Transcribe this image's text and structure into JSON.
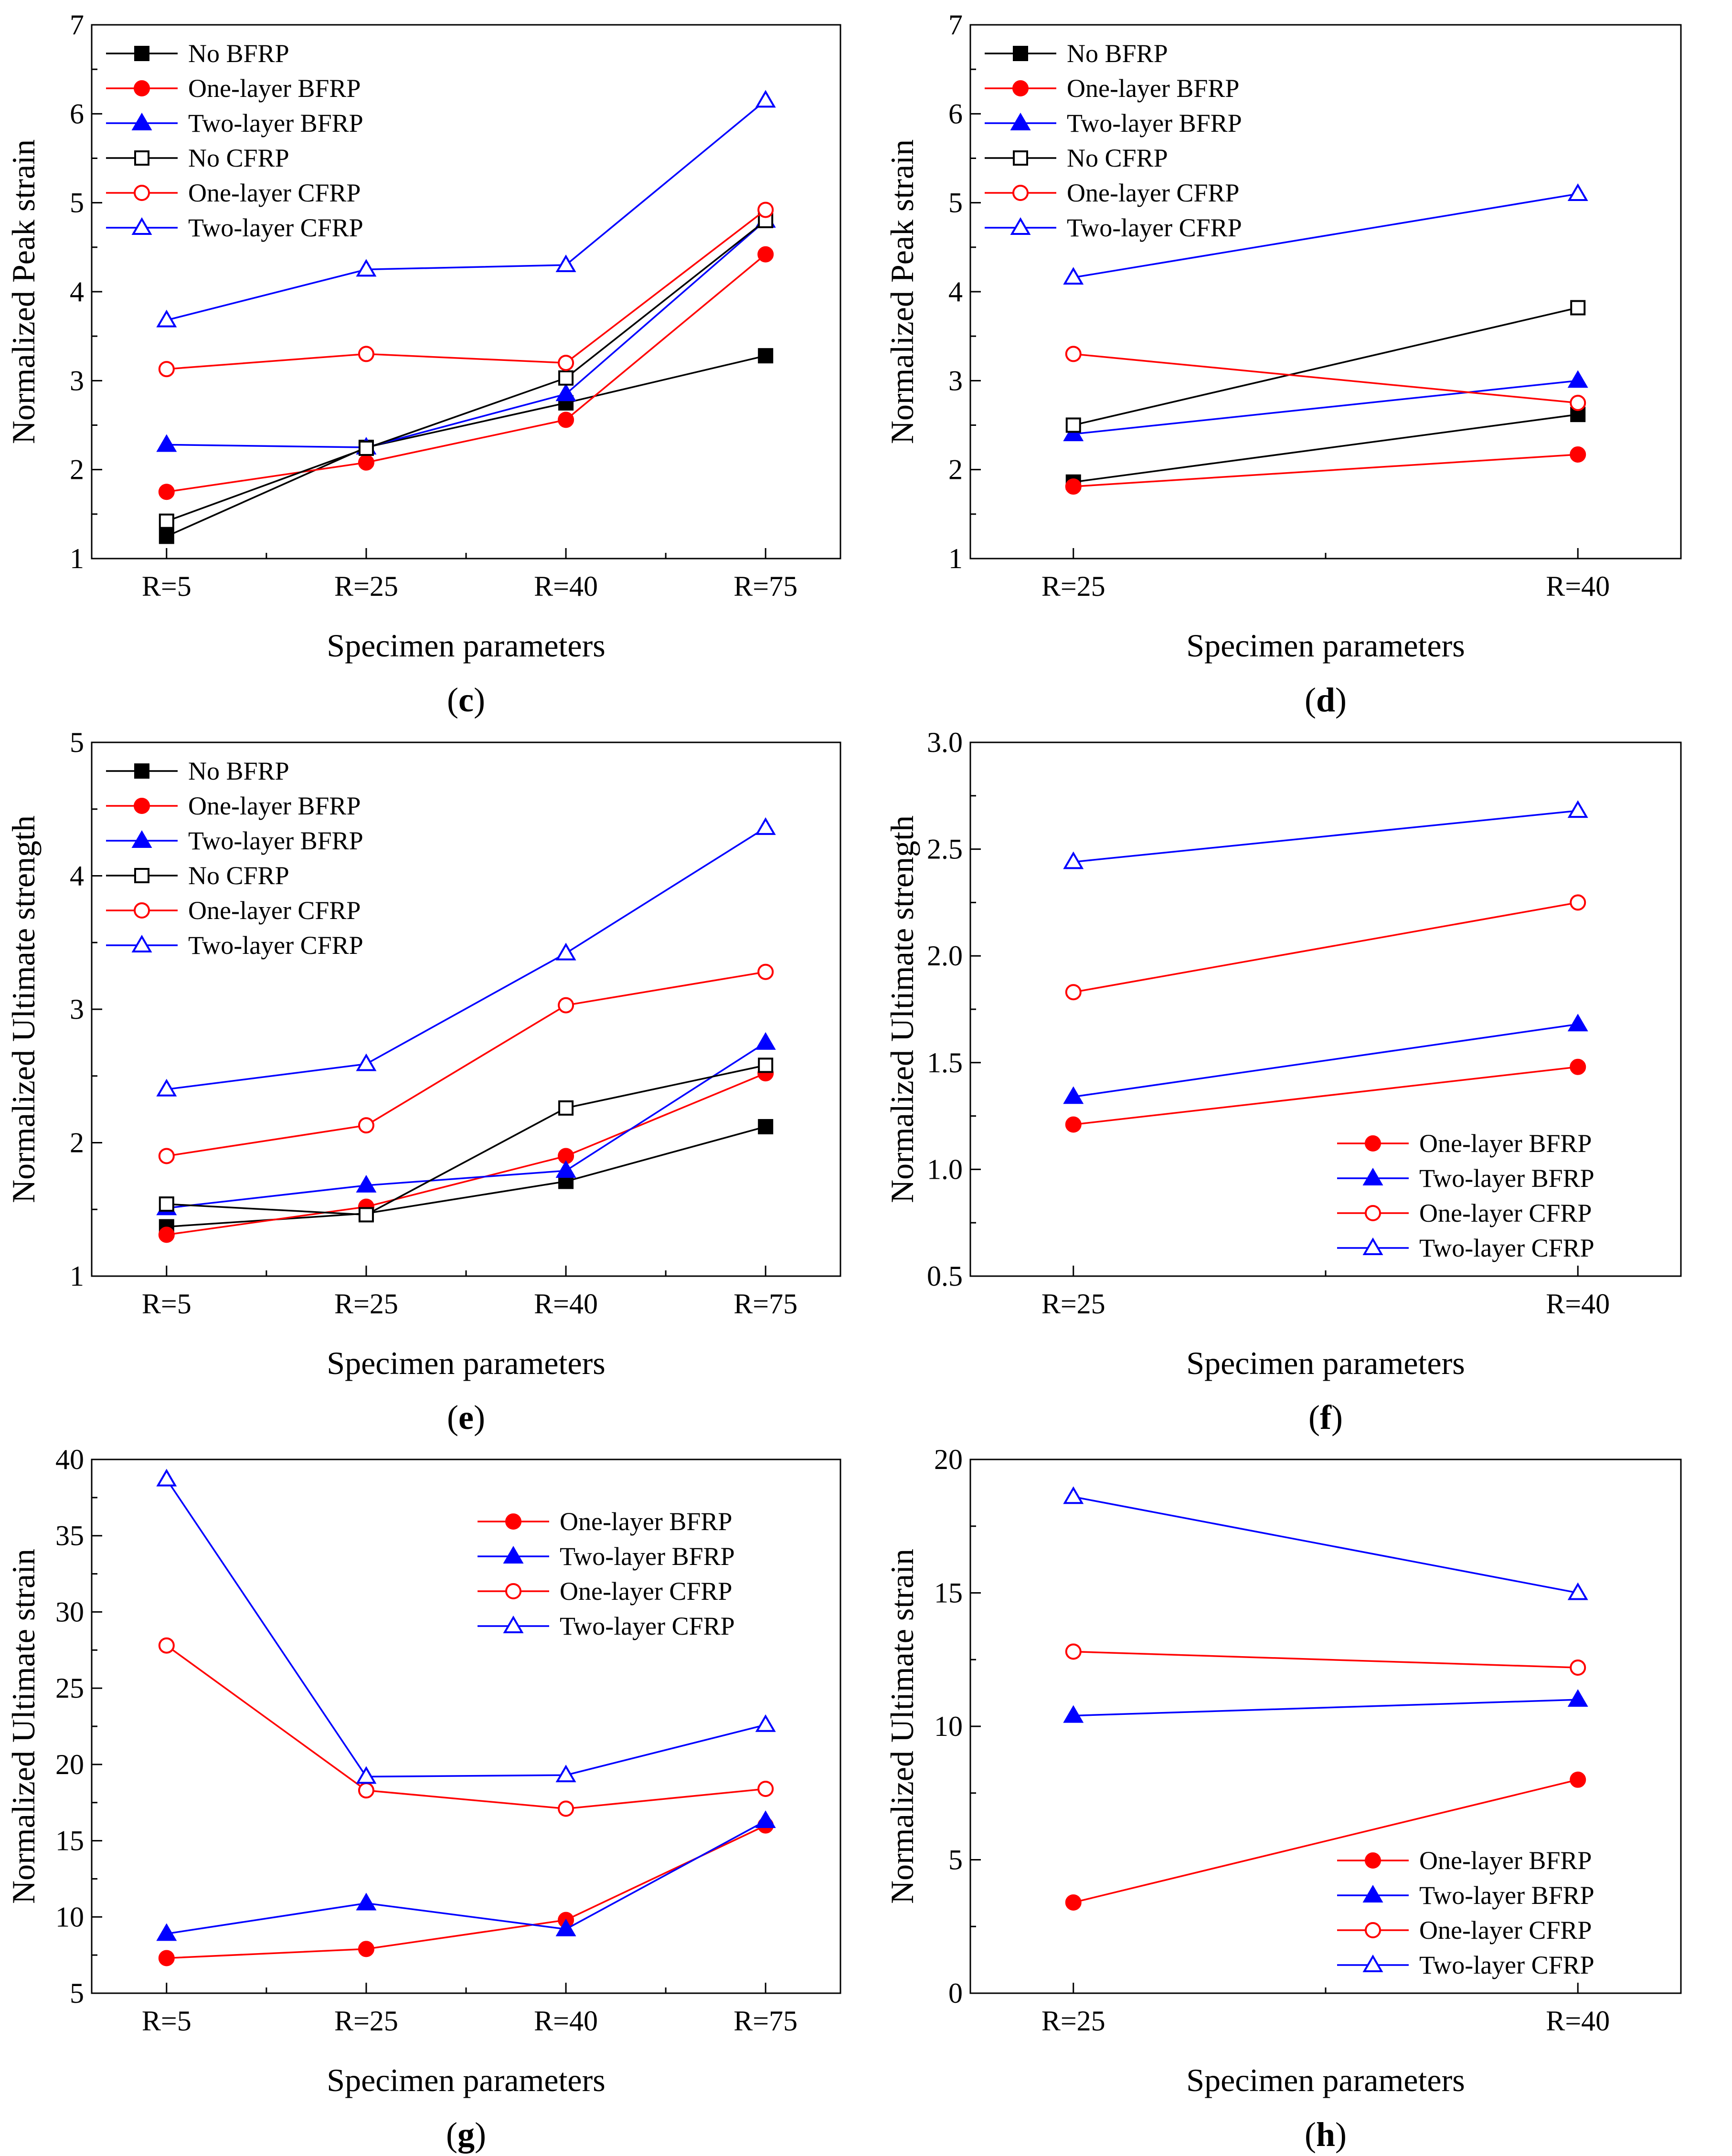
{
  "figure": {
    "colors": {
      "black": "#000000",
      "red": "#ff0000",
      "blue": "#0000ff"
    },
    "series_styles": {
      "No BFRP": {
        "color": "#000000",
        "marker": "square",
        "filled": true
      },
      "One-layer BFRP": {
        "color": "#ff0000",
        "marker": "circle",
        "filled": true
      },
      "Two-layer BFRP": {
        "color": "#0000ff",
        "marker": "triangle",
        "filled": true
      },
      "No CFRP": {
        "color": "#000000",
        "marker": "square",
        "filled": false
      },
      "One-layer CFRP": {
        "color": "#ff0000",
        "marker": "circle",
        "filled": false
      },
      "Two-layer CFRP": {
        "color": "#0000ff",
        "marker": "triangle",
        "filled": false
      }
    }
  },
  "chart_data": [
    {
      "id": "c",
      "panel_label": "c",
      "type": "line",
      "categories": [
        "R=5",
        "R=25",
        "R=40",
        "R=75"
      ],
      "xlabel": "Specimen parameters",
      "ylabel": "Normalized Peak strain",
      "ylim": [
        1,
        7
      ],
      "yticks": [
        1,
        2,
        3,
        4,
        5,
        6,
        7
      ],
      "ytick_labels": [
        "1",
        "2",
        "3",
        "4",
        "5",
        "6",
        "7"
      ],
      "legend": "top-left",
      "series": [
        {
          "name": "No BFRP",
          "values": [
            1.25,
            2.25,
            2.75,
            3.28
          ]
        },
        {
          "name": "One-layer BFRP",
          "values": [
            1.75,
            2.08,
            2.56,
            4.42
          ]
        },
        {
          "name": "Two-layer BFRP",
          "values": [
            2.28,
            2.25,
            2.85,
            4.8
          ]
        },
        {
          "name": "No CFRP",
          "values": [
            1.42,
            2.24,
            3.03,
            4.8
          ]
        },
        {
          "name": "One-layer CFRP",
          "values": [
            3.13,
            3.3,
            3.2,
            4.92
          ]
        },
        {
          "name": "Two-layer CFRP",
          "values": [
            3.68,
            4.25,
            4.3,
            6.15
          ]
        }
      ]
    },
    {
      "id": "d",
      "panel_label": "d",
      "type": "line",
      "categories": [
        "R=25",
        "R=40"
      ],
      "xlabel": "Specimen parameters",
      "ylabel": "Normalized Peak strain",
      "ylim": [
        1,
        7
      ],
      "yticks": [
        1,
        2,
        3,
        4,
        5,
        6,
        7
      ],
      "ytick_labels": [
        "1",
        "2",
        "3",
        "4",
        "5",
        "6",
        "7"
      ],
      "legend": "top-left",
      "series": [
        {
          "name": "No BFRP",
          "values": [
            1.86,
            2.62
          ]
        },
        {
          "name": "One-layer BFRP",
          "values": [
            1.81,
            2.17
          ]
        },
        {
          "name": "Two-layer BFRP",
          "values": [
            2.4,
            3.0
          ]
        },
        {
          "name": "No CFRP",
          "values": [
            2.5,
            3.82
          ]
        },
        {
          "name": "One-layer CFRP",
          "values": [
            3.3,
            2.75
          ]
        },
        {
          "name": "Two-layer CFRP",
          "values": [
            4.16,
            5.1
          ]
        }
      ]
    },
    {
      "id": "e",
      "panel_label": "e",
      "type": "line",
      "categories": [
        "R=5",
        "R=25",
        "R=40",
        "R=75"
      ],
      "xlabel": "Specimen parameters",
      "ylabel": "Normalized Ultimate strength",
      "ylim": [
        1,
        5
      ],
      "yticks": [
        1,
        2,
        3,
        4,
        5
      ],
      "ytick_labels": [
        "1",
        "2",
        "3",
        "4",
        "5"
      ],
      "legend": "top-left",
      "series": [
        {
          "name": "No BFRP",
          "values": [
            1.37,
            1.47,
            1.71,
            2.12
          ]
        },
        {
          "name": "One-layer BFRP",
          "values": [
            1.31,
            1.52,
            1.9,
            2.52
          ]
        },
        {
          "name": "Two-layer BFRP",
          "values": [
            1.51,
            1.68,
            1.79,
            2.75
          ]
        },
        {
          "name": "No CFRP",
          "values": [
            1.54,
            1.46,
            2.26,
            2.58
          ]
        },
        {
          "name": "One-layer CFRP",
          "values": [
            1.9,
            2.13,
            3.03,
            3.28
          ]
        },
        {
          "name": "Two-layer CFRP",
          "values": [
            2.4,
            2.59,
            3.42,
            4.36
          ]
        }
      ]
    },
    {
      "id": "f",
      "panel_label": "f",
      "type": "line",
      "categories": [
        "R=25",
        "R=40"
      ],
      "xlabel": "Specimen parameters",
      "ylabel": "Normalized Ultimate strength",
      "ylim": [
        0.5,
        3.0
      ],
      "yticks": [
        0.5,
        1.0,
        1.5,
        2.0,
        2.5,
        3.0
      ],
      "ytick_labels": [
        "0.5",
        "1.0",
        "1.5",
        "2.0",
        "2.5",
        "3.0"
      ],
      "legend": "bottom-right",
      "series": [
        {
          "name": "One-layer BFRP",
          "values": [
            1.21,
            1.48
          ]
        },
        {
          "name": "Two-layer BFRP",
          "values": [
            1.34,
            1.68
          ]
        },
        {
          "name": "One-layer CFRP",
          "values": [
            1.83,
            2.25
          ]
        },
        {
          "name": "Two-layer CFRP",
          "values": [
            2.44,
            2.68
          ]
        }
      ]
    },
    {
      "id": "g",
      "panel_label": "g",
      "type": "line",
      "categories": [
        "R=5",
        "R=25",
        "R=40",
        "R=75"
      ],
      "xlabel": "Specimen parameters",
      "ylabel": "Normalized Ultimate strain",
      "ylim": [
        5,
        40
      ],
      "yticks": [
        5,
        10,
        15,
        20,
        25,
        30,
        35,
        40
      ],
      "ytick_labels": [
        "5",
        "10",
        "15",
        "20",
        "25",
        "30",
        "35",
        "40"
      ],
      "legend": "top-right",
      "series": [
        {
          "name": "One-layer BFRP",
          "values": [
            7.3,
            7.9,
            9.8,
            16.0
          ]
        },
        {
          "name": "Two-layer BFRP",
          "values": [
            8.9,
            10.9,
            9.2,
            16.3
          ]
        },
        {
          "name": "One-layer CFRP",
          "values": [
            27.8,
            18.3,
            17.1,
            18.4
          ]
        },
        {
          "name": "Two-layer CFRP",
          "values": [
            38.7,
            19.2,
            19.3,
            22.6
          ]
        }
      ]
    },
    {
      "id": "h",
      "panel_label": "h",
      "type": "line",
      "categories": [
        "R=25",
        "R=40"
      ],
      "xlabel": "Specimen parameters",
      "ylabel": "Normalized Ultimate strain",
      "ylim": [
        0,
        20
      ],
      "yticks": [
        0,
        5,
        10,
        15,
        20
      ],
      "ytick_labels": [
        "0",
        "5",
        "10",
        "15",
        "20"
      ],
      "legend": "bottom-right",
      "series": [
        {
          "name": "One-layer BFRP",
          "values": [
            3.4,
            8.0
          ]
        },
        {
          "name": "Two-layer BFRP",
          "values": [
            10.4,
            11.0
          ]
        },
        {
          "name": "One-layer CFRP",
          "values": [
            12.8,
            12.2
          ]
        },
        {
          "name": "Two-layer CFRP",
          "values": [
            18.6,
            15.0
          ]
        }
      ]
    }
  ]
}
